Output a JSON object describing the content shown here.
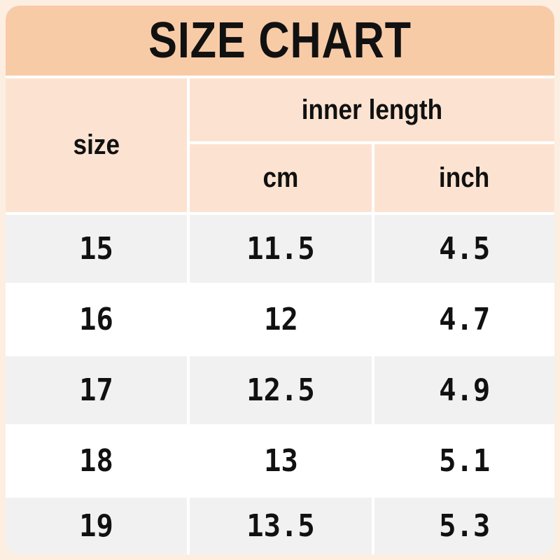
{
  "title": "SIZE CHART",
  "table": {
    "size_header": "size",
    "group_header": "inner length",
    "sub_headers": {
      "cm": "cm",
      "inch": "inch"
    },
    "rows": [
      {
        "size": "15",
        "cm": "11.5",
        "inch": "4.5"
      },
      {
        "size": "16",
        "cm": "12",
        "inch": "4.7"
      },
      {
        "size": "17",
        "cm": "12.5",
        "inch": "4.9"
      },
      {
        "size": "18",
        "cm": "13",
        "inch": "5.1"
      },
      {
        "size": "19",
        "cm": "13.5",
        "inch": "5.3"
      }
    ]
  },
  "chart_data": {
    "type": "table",
    "title": "SIZE CHART",
    "columns": [
      "size",
      "inner length (cm)",
      "inner length (inch)"
    ],
    "rows": [
      [
        15,
        11.5,
        4.5
      ],
      [
        16,
        12,
        4.7
      ],
      [
        17,
        12.5,
        4.9
      ],
      [
        18,
        13,
        5.1
      ],
      [
        19,
        13.5,
        5.3
      ]
    ]
  },
  "colors": {
    "outer_bg": "#fdeee2",
    "title_bar": "#f8cba7",
    "header_cell": "#fce3d1",
    "row_alt": "#f1f1f2",
    "row_base": "#ffffff",
    "divider": "#ffffff",
    "text": "#111111"
  }
}
